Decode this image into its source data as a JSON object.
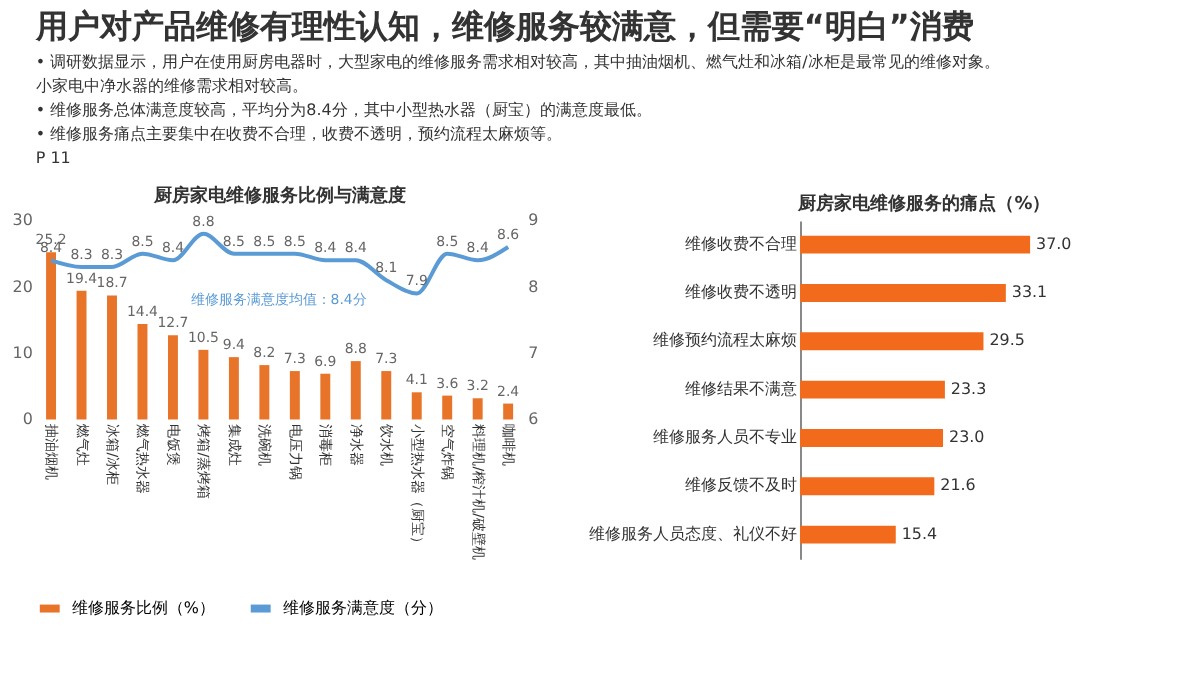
{
  "chart_data": [
    {
      "type": "other",
      "title": "用户对产品维修有理性认知，维修服务较满意，但需要“明白”消费",
      "annotations": [
        "• 调研数据显示，用户在使用厨房电器时，大型家电的维修服务需求相对较高，其中抽油烟机、燃气灶和冰箱/冰柜是最常见的维修对象。",
        "   小家电中净水器的维修需求相对较高。",
        "• 维修服务总体满意度较高，平均分为8.4分，其中小型热水器（厨宝）的满意度最低。",
        "• 维修服务痛点主要集中在收费不合理，收费不透明，预约流程太麻烦等。",
        "P 11"
      ]
    },
    {
      "type": "bar",
      "title": "厨房家电维修服务比例与满意度",
      "categories": [
        "抽油烟机",
        "燃气灶",
        "冰箱/冰柜",
        "燃气热水器",
        "电饭煲",
        "烤箱/蒸烤箱",
        "集成灶",
        "洗碗机",
        "电压力锅",
        "消毒柜",
        "净水器",
        "饮水机",
        "小型热水器（厨宝）",
        "空气炸锅",
        "料理机/榨汁机/破壁机",
        "咖啡机"
      ],
      "series": [
        {
          "name": "维修服务比例（%）",
          "type": "bar",
          "color": "#e8742a",
          "values": [
            25.2,
            19.4,
            18.7,
            14.4,
            12.7,
            10.5,
            9.4,
            8.2,
            7.3,
            6.9,
            8.8,
            7.3,
            4.1,
            3.6,
            3.2,
            2.4
          ]
        },
        {
          "name": "维修服务满意度（分）",
          "type": "line",
          "axis": "y2",
          "color": "#5b9bd5",
          "values": [
            8.4,
            8.3,
            8.3,
            8.5,
            8.4,
            8.8,
            8.5,
            8.5,
            8.5,
            8.4,
            8.4,
            8.1,
            7.9,
            8.5,
            8.4,
            8.6
          ]
        }
      ],
      "ylim": [
        0,
        30
      ],
      "yticks": [
        0,
        10,
        20,
        30
      ],
      "y2lim": [
        6,
        9
      ],
      "y2ticks": [
        6,
        7,
        8,
        9
      ],
      "data_labels": true,
      "legend": "bottom",
      "grid": false,
      "annotations": [
        "维修服务满意度均值：8.4分"
      ]
    },
    {
      "type": "bar",
      "orientation": "horizontal",
      "title": "厨房家电维修服务的痛点（%）",
      "categories": [
        "维修收费不合理",
        "维修收费不透明",
        "维修预约流程太麻烦",
        "维修结果不满意",
        "维修服务人员不专业",
        "维修反馈不及时",
        "维修服务人员态度、礼仪不好"
      ],
      "values": [
        37.0,
        33.1,
        29.5,
        23.3,
        23.0,
        21.6,
        15.4
      ],
      "value_labels": [
        "37.0",
        "33.1",
        "29.5",
        "23.3",
        "23.0",
        "21.6",
        "15.4"
      ],
      "color": "#f26b1d",
      "data_labels": true,
      "grid": false
    }
  ]
}
